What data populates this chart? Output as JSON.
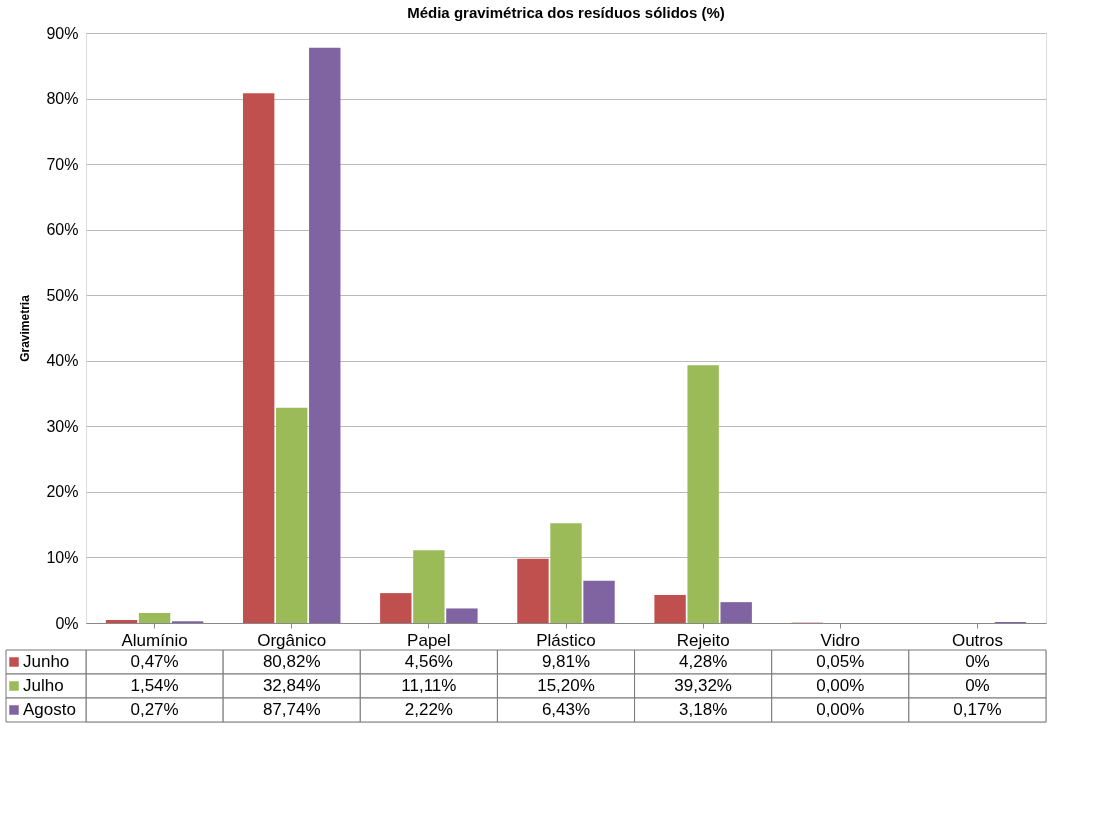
{
  "chart_data": {
    "type": "bar",
    "title": "Média gravimétrica dos resíduos sólidos (%)",
    "ylabel": "Gravimetria",
    "categories": [
      "Alumínio",
      "Orgânico",
      "Papel",
      "Plástico",
      "Rejeito",
      "Vidro",
      "Outros"
    ],
    "series": [
      {
        "name": "Junho",
        "color": "#c0504d",
        "values": [
          0.47,
          80.82,
          4.56,
          9.81,
          4.28,
          0.05,
          0
        ],
        "value_labels": [
          "0,47%",
          "80,82%",
          "4,56%",
          "9,81%",
          "4,28%",
          "0,05%",
          "0%"
        ]
      },
      {
        "name": "Julho",
        "color": "#9bbb59",
        "values": [
          1.54,
          32.84,
          11.11,
          15.2,
          39.32,
          0.0,
          0
        ],
        "value_labels": [
          "1,54%",
          "32,84%",
          "11,11%",
          "15,20%",
          "39,32%",
          "0,00%",
          "0%"
        ]
      },
      {
        "name": "Agosto",
        "color": "#8064a2",
        "values": [
          0.27,
          87.74,
          2.22,
          6.43,
          3.18,
          0.0,
          0.17
        ],
        "value_labels": [
          "0,27%",
          "87,74%",
          "2,22%",
          "6,43%",
          "3,18%",
          "0,00%",
          "0,17%"
        ]
      }
    ],
    "ylim": [
      0,
      90
    ],
    "yticks": [
      {
        "value": 0,
        "label": "0%"
      },
      {
        "value": 10,
        "label": "10%"
      },
      {
        "value": 20,
        "label": "20%"
      },
      {
        "value": 30,
        "label": "30%"
      },
      {
        "value": 40,
        "label": "40%"
      },
      {
        "value": 50,
        "label": "50%"
      },
      {
        "value": 60,
        "label": "60%"
      },
      {
        "value": 70,
        "label": "70%"
      },
      {
        "value": 80,
        "label": "80%"
      },
      {
        "value": 90,
        "label": "90%"
      }
    ],
    "grid": "y",
    "legend": "bottom"
  }
}
